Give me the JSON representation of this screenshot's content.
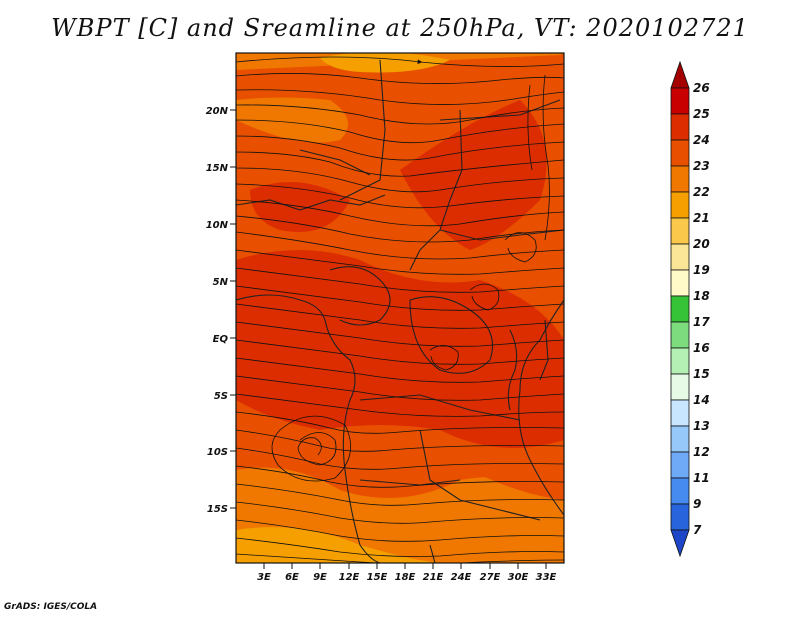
{
  "title": "WBPT [C] and Sreamline at 250hPa, VT: 2020102721",
  "credit": "GrADS: IGES/COLA",
  "map": {
    "lat_ticks": [
      "20N",
      "15N",
      "10N",
      "5N",
      "EQ",
      "5S",
      "10S",
      "15S"
    ],
    "lon_ticks": [
      "3E",
      "6E",
      "9E",
      "12E",
      "15E",
      "18E",
      "21E",
      "24E",
      "27E",
      "30E",
      "33E"
    ],
    "field_colors": {
      "level_21": "#f5a000",
      "level_22": "#f07800",
      "level_23": "#e85000",
      "level_24": "#dc2d00"
    }
  },
  "colorbar": {
    "labels": [
      "26",
      "25",
      "24",
      "23",
      "22",
      "21",
      "20",
      "19",
      "18",
      "17",
      "16",
      "15",
      "14",
      "13",
      "12",
      "11",
      "9",
      "7"
    ],
    "colors": [
      "#a50000",
      "#c80000",
      "#dc2d00",
      "#e85000",
      "#f07800",
      "#f5a000",
      "#fac84b",
      "#fae696",
      "#fffac8",
      "#37c337",
      "#7ddc7d",
      "#b4f0b4",
      "#e6fae6",
      "#c8e6ff",
      "#96c8fa",
      "#6eaaf5",
      "#468cf0",
      "#2864dc",
      "#1e46c8"
    ]
  }
}
